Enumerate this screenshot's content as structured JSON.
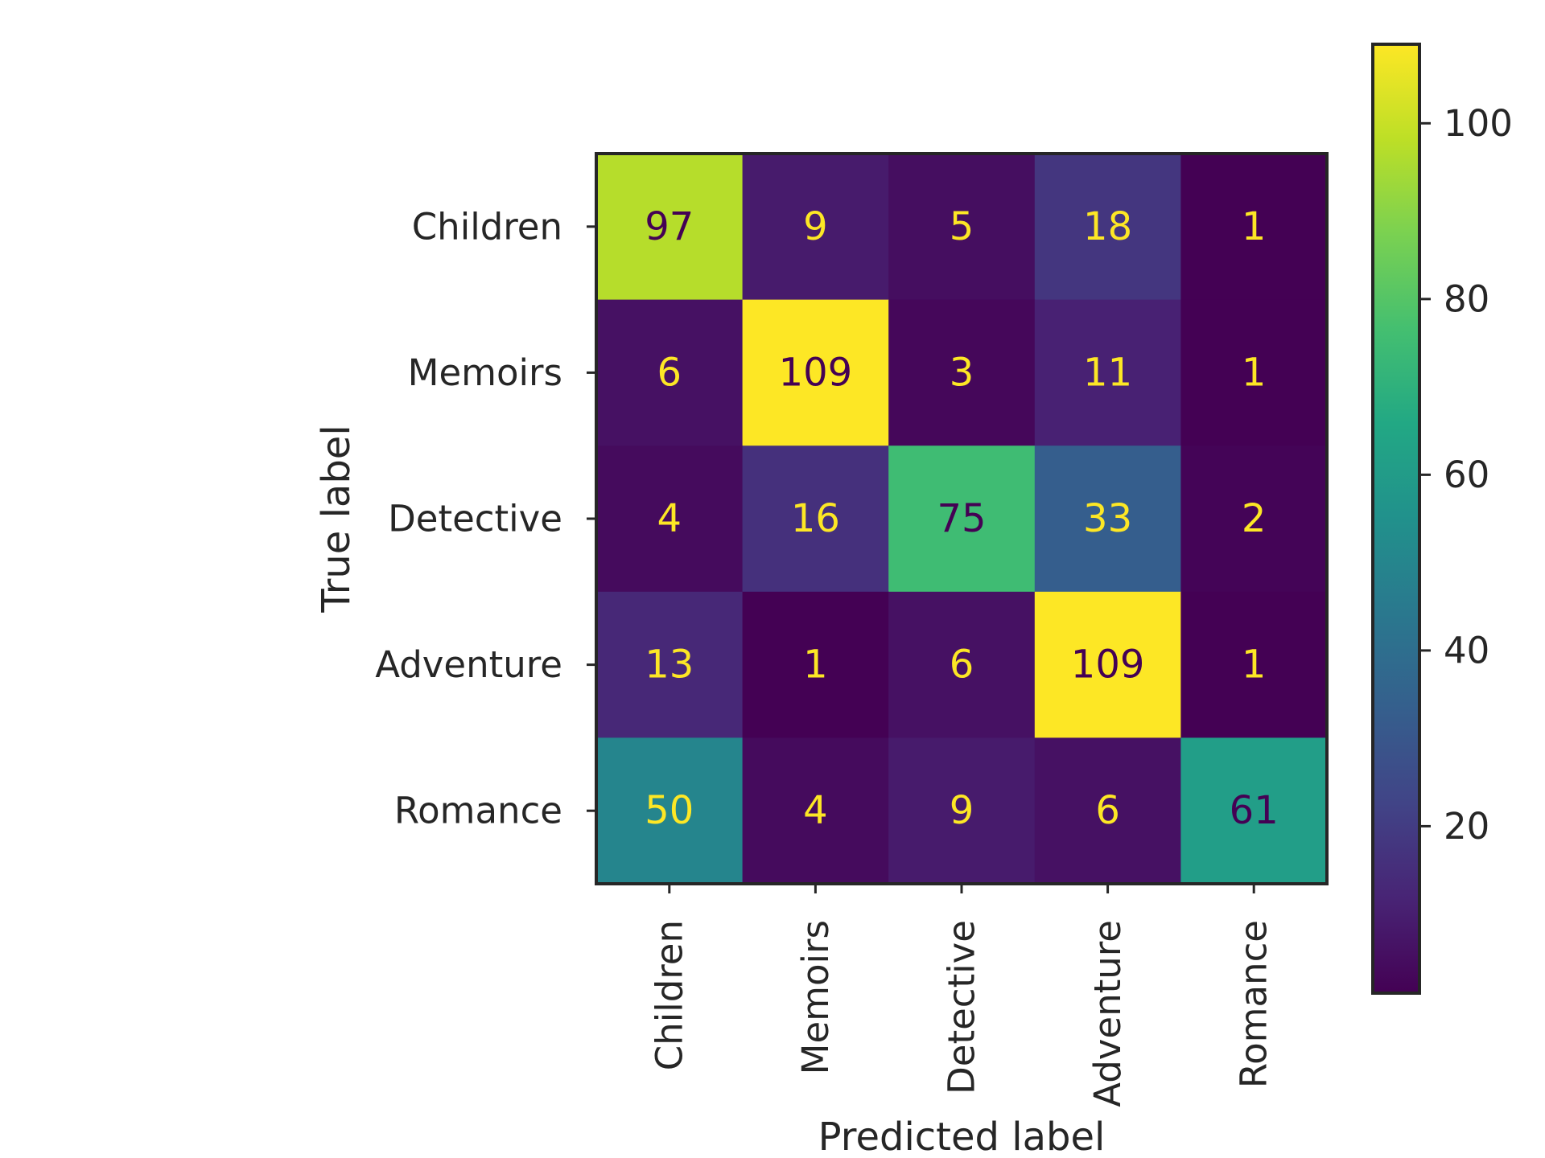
{
  "chart_data": {
    "type": "heatmap",
    "xlabel": "Predicted label",
    "ylabel": "True label",
    "categories": [
      "Children",
      "Memoirs",
      "Detective",
      "Adventure",
      "Romance"
    ],
    "matrix": [
      [
        97,
        9,
        5,
        18,
        1
      ],
      [
        6,
        109,
        3,
        11,
        1
      ],
      [
        4,
        16,
        75,
        33,
        2
      ],
      [
        13,
        1,
        6,
        109,
        1
      ],
      [
        50,
        4,
        9,
        6,
        61
      ]
    ],
    "colormap": "viridis",
    "colorbar": {
      "range": [
        1,
        109
      ],
      "ticks": [
        20,
        40,
        60,
        80,
        100
      ]
    }
  }
}
